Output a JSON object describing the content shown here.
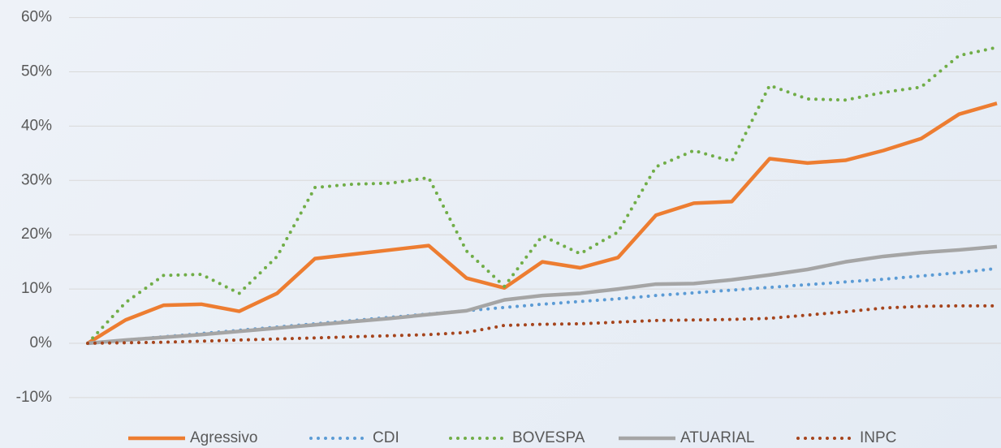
{
  "chart_data": {
    "type": "line",
    "categories": [
      null,
      null,
      null,
      null,
      null,
      null,
      null,
      null,
      null,
      null,
      null,
      null,
      null,
      null,
      null,
      null,
      null,
      null,
      null,
      null,
      null,
      null,
      null,
      null,
      null
    ],
    "series": [
      {
        "name": "Agressivo",
        "color": "#ed7d31",
        "style": "solid",
        "values": [
          0,
          4.3,
          7,
          7.2,
          5.9,
          9.2,
          15.6,
          16.4,
          17.2,
          18,
          12,
          10.2,
          15,
          13.9,
          15.8,
          23.6,
          25.8,
          26.1,
          34,
          33.2,
          33.7,
          35.5,
          37.7,
          42.2,
          44.2
        ]
      },
      {
        "name": "CDI",
        "color": "#5b9bd5",
        "style": "dotted",
        "values": [
          0,
          0.6,
          1.2,
          1.8,
          2.4,
          3,
          3.6,
          4.2,
          4.8,
          5.4,
          6,
          6.6,
          7.2,
          7.7,
          8.2,
          8.8,
          9.3,
          9.8,
          10.3,
          10.8,
          11.3,
          11.8,
          12.4,
          13,
          13.8
        ]
      },
      {
        "name": "BOVESPA",
        "color": "#70ad47",
        "style": "dotted",
        "values": [
          0,
          7.5,
          12.5,
          12.7,
          9.2,
          16,
          28.7,
          29.3,
          29.5,
          30.5,
          17,
          10.5,
          19.8,
          16.5,
          20.5,
          32.5,
          35.5,
          33.5,
          47.5,
          45,
          44.8,
          46.2,
          47.2,
          53,
          54.5
        ]
      },
      {
        "name": "ATUARIAL",
        "color": "#a5a5a5",
        "style": "solid",
        "values": [
          0,
          0.6,
          1.1,
          1.6,
          2.2,
          2.8,
          3.4,
          4,
          4.6,
          5.3,
          6,
          8,
          8.8,
          9.2,
          10,
          10.9,
          11,
          11.7,
          12.6,
          13.6,
          15,
          16,
          16.7,
          17.2,
          17.8
        ]
      },
      {
        "name": "INPC",
        "color": "#a5441c",
        "style": "dotted",
        "values": [
          0,
          0.1,
          0.2,
          0.4,
          0.6,
          0.8,
          1,
          1.2,
          1.4,
          1.6,
          2,
          3.3,
          3.5,
          3.6,
          3.9,
          4.2,
          4.3,
          4.4,
          4.6,
          5.2,
          5.8,
          6.5,
          6.8,
          6.9,
          6.9
        ]
      }
    ],
    "ylim": [
      -15,
      62
    ],
    "yticks": [
      {
        "value": -10,
        "label": "-10%"
      },
      {
        "value": 0,
        "label": "0%"
      },
      {
        "value": 10,
        "label": "10%"
      },
      {
        "value": 20,
        "label": "20%"
      },
      {
        "value": 30,
        "label": "30%"
      },
      {
        "value": 40,
        "label": "40%"
      },
      {
        "value": 50,
        "label": "50%"
      },
      {
        "value": 60,
        "label": "60%"
      }
    ],
    "grid": true,
    "legend": "bottom"
  }
}
